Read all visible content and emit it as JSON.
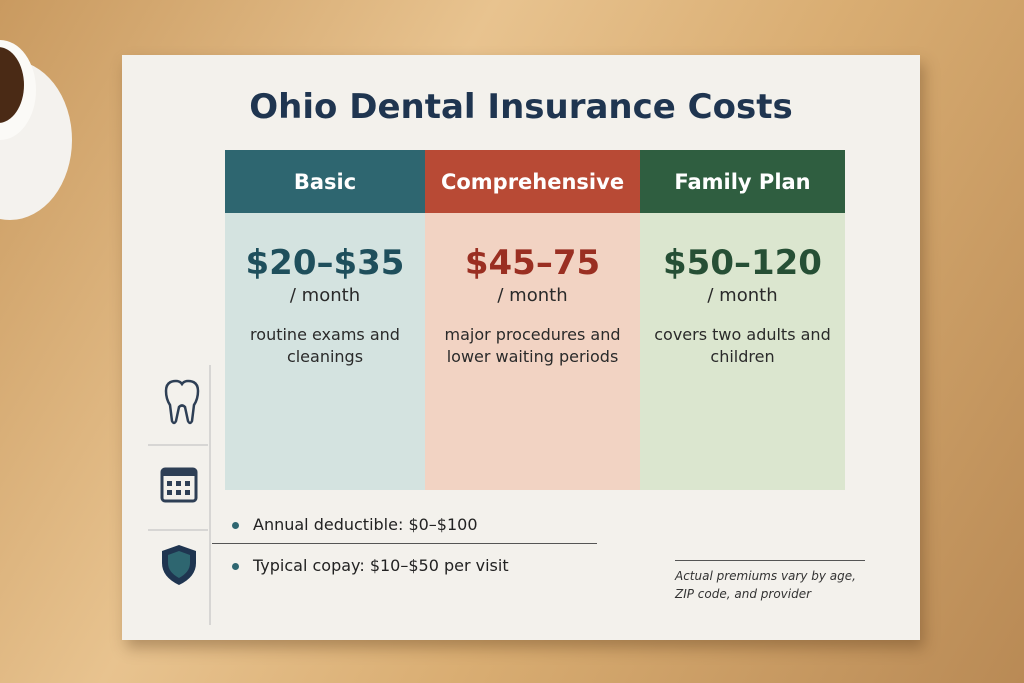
{
  "title": "Ohio Dental Insurance Costs",
  "plans": [
    {
      "name": "Basic",
      "price": "$20–$35",
      "period": "/ month",
      "description": "routine exams and cleanings"
    },
    {
      "name": "Comprehensive",
      "price": "$45–75",
      "period": "/ month",
      "description": "major procedures and lower waiting periods"
    },
    {
      "name": "Family Plan",
      "price": "$50–120",
      "period": "/ month",
      "description": "covers two adults and children"
    }
  ],
  "details": [
    "Annual deductible: $0–$100",
    "Typical copay: $10–$50 per visit"
  ],
  "note": "Actual premiums vary by age, ZIP code, and provider"
}
